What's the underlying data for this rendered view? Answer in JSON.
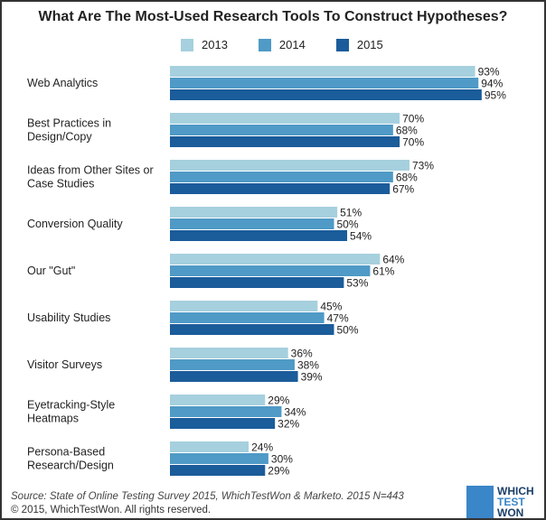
{
  "chart_data": {
    "type": "bar",
    "orientation": "horizontal",
    "title": "What Are The Most-Used Research Tools To Construct Hypotheses?",
    "categories": [
      [
        "Web Analytics"
      ],
      [
        "Best Practices in",
        "Design/Copy"
      ],
      [
        "Ideas from Other Sites or",
        "Case Studies"
      ],
      [
        "Conversion Quality"
      ],
      [
        "Our \"Gut\""
      ],
      [
        "Usability Studies"
      ],
      [
        "Visitor Surveys"
      ],
      [
        "Eyetracking-Style",
        "Heatmaps"
      ],
      [
        "Persona-Based",
        "Research/Design"
      ]
    ],
    "series": [
      {
        "name": "2013",
        "color": "#a6d0de",
        "values": [
          93,
          70,
          73,
          51,
          64,
          45,
          36,
          29,
          24
        ]
      },
      {
        "name": "2014",
        "color": "#4f9ac6",
        "values": [
          94,
          68,
          68,
          50,
          61,
          47,
          38,
          34,
          30
        ]
      },
      {
        "name": "2015",
        "color": "#1b5c9a",
        "values": [
          95,
          70,
          67,
          54,
          53,
          50,
          39,
          32,
          29
        ]
      }
    ],
    "value_suffix": "%",
    "xlim": [
      0,
      100
    ],
    "grid": false,
    "legend_position": "top"
  },
  "footer": {
    "source": "Source: State of Online Testing Survey 2015, WhichTestWon & Marketo.   2015 N=443",
    "copyright": "© 2015, WhichTestWon. All rights reserved."
  },
  "logo": {
    "lines": [
      "WHICH",
      "TEST",
      "WON"
    ]
  }
}
